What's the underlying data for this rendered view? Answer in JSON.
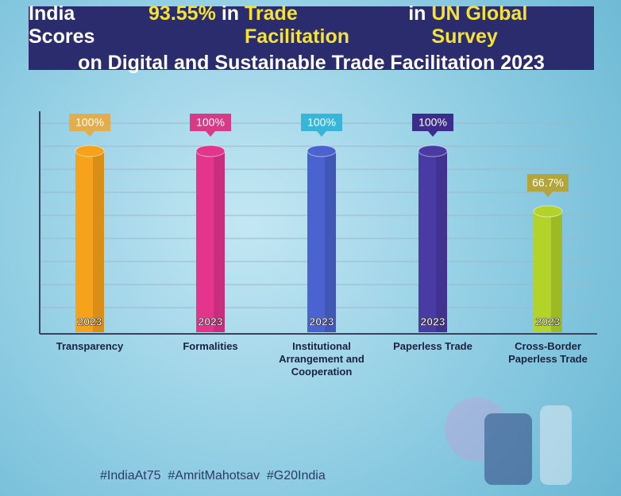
{
  "chart_data": {
    "type": "bar",
    "title": [
      [
        {
          "text": "India Scores",
          "highlight": false
        },
        {
          "text": "93.55%",
          "highlight": true
        },
        {
          "text": "in",
          "highlight": false
        },
        {
          "text": "Trade Facilitation",
          "highlight": true
        },
        {
          "text": "in",
          "highlight": false
        },
        {
          "text": "UN Global Survey",
          "highlight": true
        }
      ],
      [
        {
          "text": "on Digital and Sustainable Trade Facilitation 2023",
          "highlight": false
        }
      ]
    ],
    "categories": [
      "Transparency",
      "Formalities",
      "Institutional Arrangement and Cooperation",
      "Paperless Trade",
      "Cross-Border Paperless Trade"
    ],
    "values": [
      100,
      100,
      100,
      100,
      66.7
    ],
    "value_labels": [
      "100%",
      "100%",
      "100%",
      "100%",
      "66.7%"
    ],
    "bar_label": "2023",
    "colors": [
      "#f7a21b",
      "#e4358c",
      "#4a63cf",
      "#4a3aa3",
      "#b3d32a"
    ],
    "label_colors": [
      "#e2ad4c",
      "#d83a86",
      "#38b6d9",
      "#3c2d8c",
      "#b3a53b"
    ],
    "ylim": [
      0,
      100
    ],
    "grid": true,
    "footer": "#IndiaAt75  #AmritMahotsav  #G20India"
  }
}
